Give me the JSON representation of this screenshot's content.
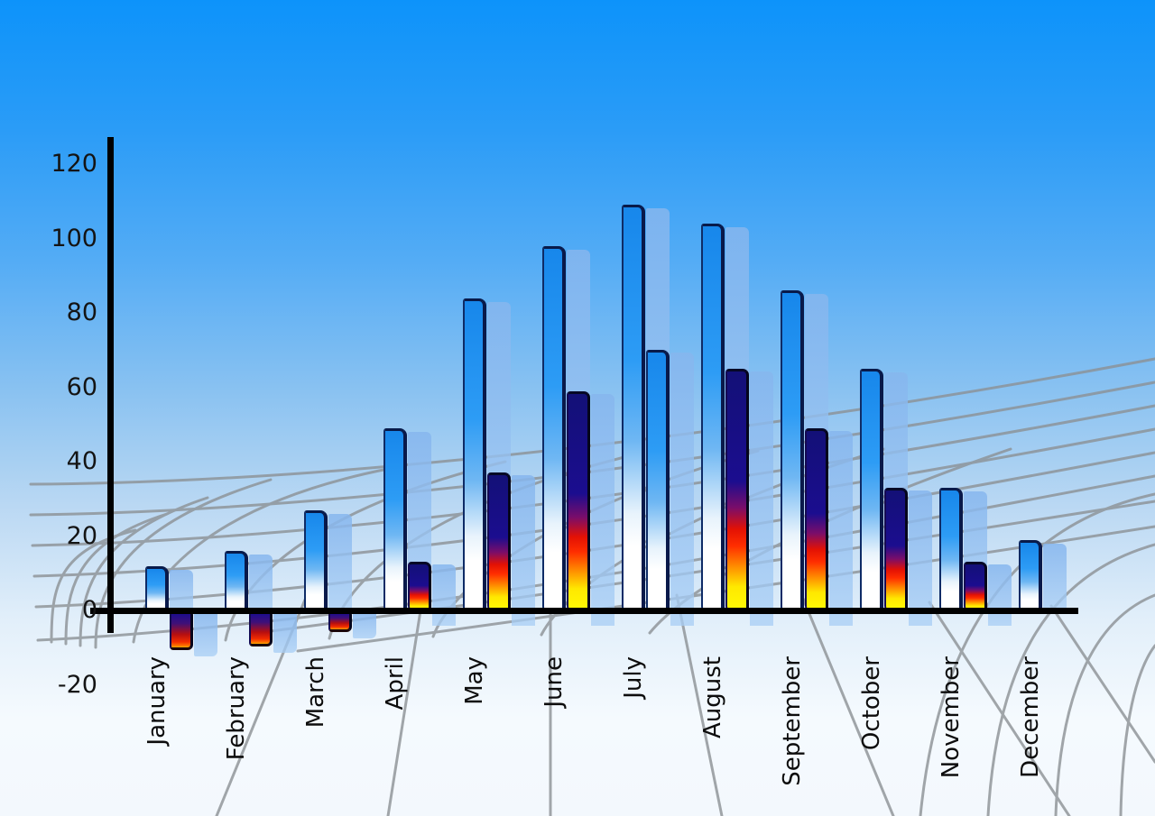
{
  "chart_data": {
    "type": "bar",
    "title": "",
    "categories": [
      "January",
      "February",
      "March",
      "April",
      "May",
      "June",
      "July",
      "August",
      "September",
      "October",
      "November",
      "December"
    ],
    "series": [
      {
        "name": "primary-blue-bars",
        "style": "blue-gradient",
        "values": [
          12,
          16,
          27,
          49,
          84,
          98,
          109,
          104,
          86,
          65,
          33,
          19
        ]
      },
      {
        "name": "secondary-fire-bars",
        "style": "fire-gradient",
        "values": [
          -10,
          -9,
          -5,
          13,
          37,
          59,
          70,
          65,
          49,
          33,
          13,
          null
        ]
      }
    ],
    "secondary_style_overrides": {
      "6": "blue-gradient"
    },
    "y_axis": {
      "min": -20,
      "max": 120,
      "tick_step": 20,
      "tick_labels": [
        "120",
        "100",
        "80",
        "60",
        "40",
        "20",
        "0",
        "-20"
      ]
    },
    "x_axis": {
      "label_rotation_deg": -90
    },
    "legend": "none",
    "grid": "decorative-perspective-web",
    "colors": {
      "sky_top": "#0D93FA",
      "sky_bottom": "#F5FAFE",
      "bar_blue": "#2196F3",
      "bar_edge_navy": "#09194A",
      "fire_navy": "#1B0D8F",
      "fire_red": "#E31104",
      "fire_yellow": "#FFE800",
      "ghost_blue": "#9CC6F0",
      "grid_line": "#8C9195",
      "axis": "#000000",
      "text": "#141414"
    }
  }
}
